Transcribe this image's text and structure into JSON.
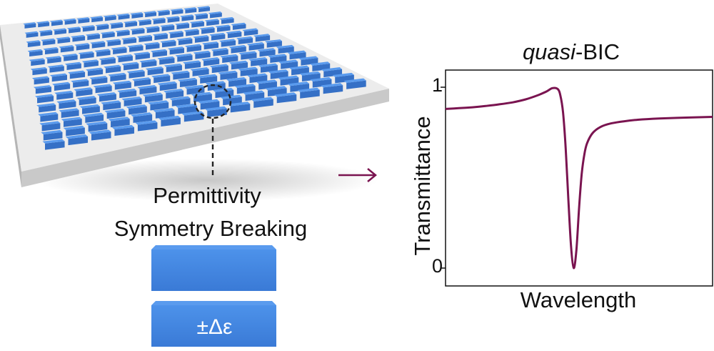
{
  "figure": {
    "symmetry_label_line1": "Permittivity",
    "symmetry_label_line2": "Symmetry Breaking",
    "perturbation_label": "±Δε",
    "plot_title_italic": "quasi",
    "plot_title_rest": "-BIC",
    "y_axis_label": "Transmittance",
    "x_axis_label": "Wavelength",
    "y_tick_top": "1",
    "y_tick_bottom": "0"
  },
  "metasurface": {
    "rows": 14,
    "cols": 14,
    "substrate_color": "#e6e6e6",
    "block_color": "#3f86e0"
  },
  "colors": {
    "curve": "#7a1450",
    "arrow": "#7a1450",
    "block_top": "#5a9bee",
    "block_front": "#3570c6",
    "block_side": "#2a5aa6"
  },
  "chart_data": {
    "type": "line",
    "title": "quasi-BIC",
    "xlabel": "Wavelength",
    "ylabel": "Transmittance",
    "ylim": [
      0,
      1
    ],
    "yticks": [
      "0",
      "1"
    ],
    "x": [
      0.0,
      0.05,
      0.1,
      0.15,
      0.2,
      0.25,
      0.3,
      0.35,
      0.38,
      0.4,
      0.42,
      0.43,
      0.44,
      0.45,
      0.46,
      0.47,
      0.48,
      0.49,
      0.5,
      0.51,
      0.52,
      0.53,
      0.55,
      0.58,
      0.62,
      0.67,
      0.72,
      0.8,
      0.9,
      1.0
    ],
    "series": [
      {
        "values": [
          0.88,
          0.884,
          0.889,
          0.896,
          0.905,
          0.916,
          0.933,
          0.958,
          0.978,
          0.995,
          0.99,
          0.955,
          0.86,
          0.66,
          0.38,
          0.12,
          0.0,
          0.1,
          0.33,
          0.52,
          0.63,
          0.69,
          0.745,
          0.78,
          0.8,
          0.812,
          0.82,
          0.827,
          0.832,
          0.836
        ]
      }
    ]
  }
}
